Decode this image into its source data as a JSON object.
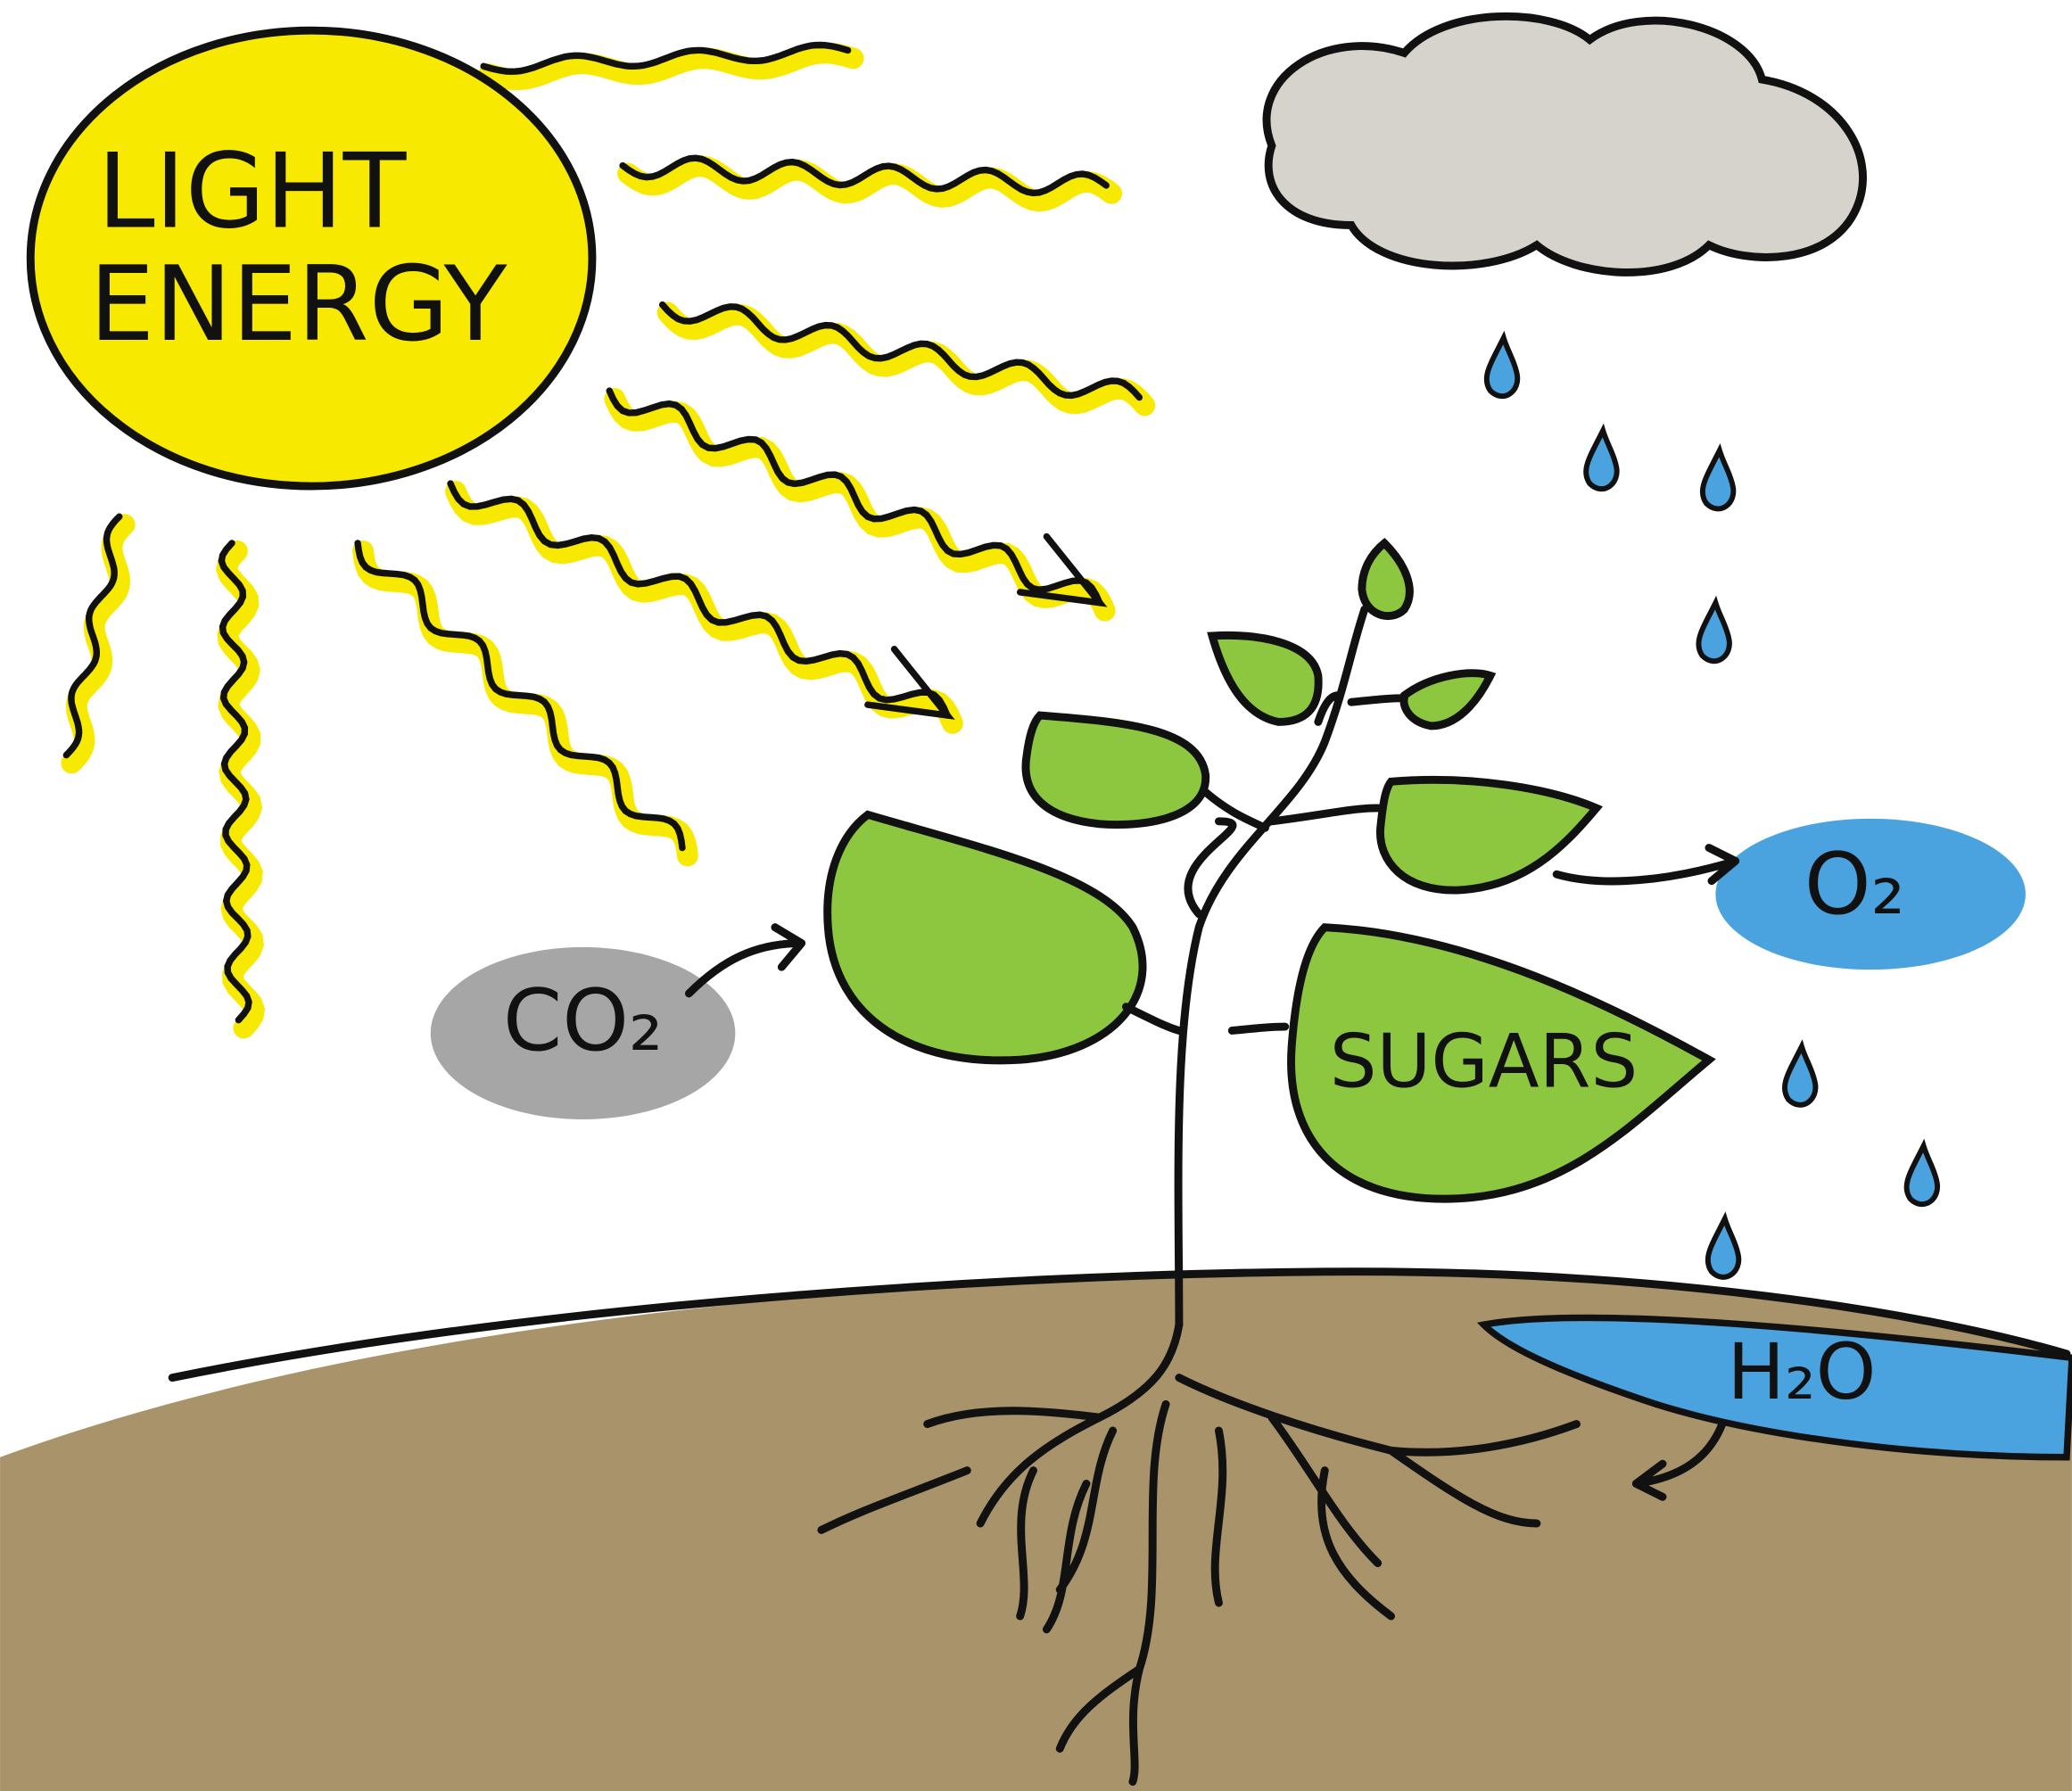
{
  "sun": {
    "lines": [
      "LIGHT",
      "ENERGY"
    ]
  },
  "inputs": {
    "carbon_dioxide": "CO₂",
    "water": "H₂O"
  },
  "outputs": {
    "oxygen": "O₂",
    "sugars": "SUGARS"
  }
}
